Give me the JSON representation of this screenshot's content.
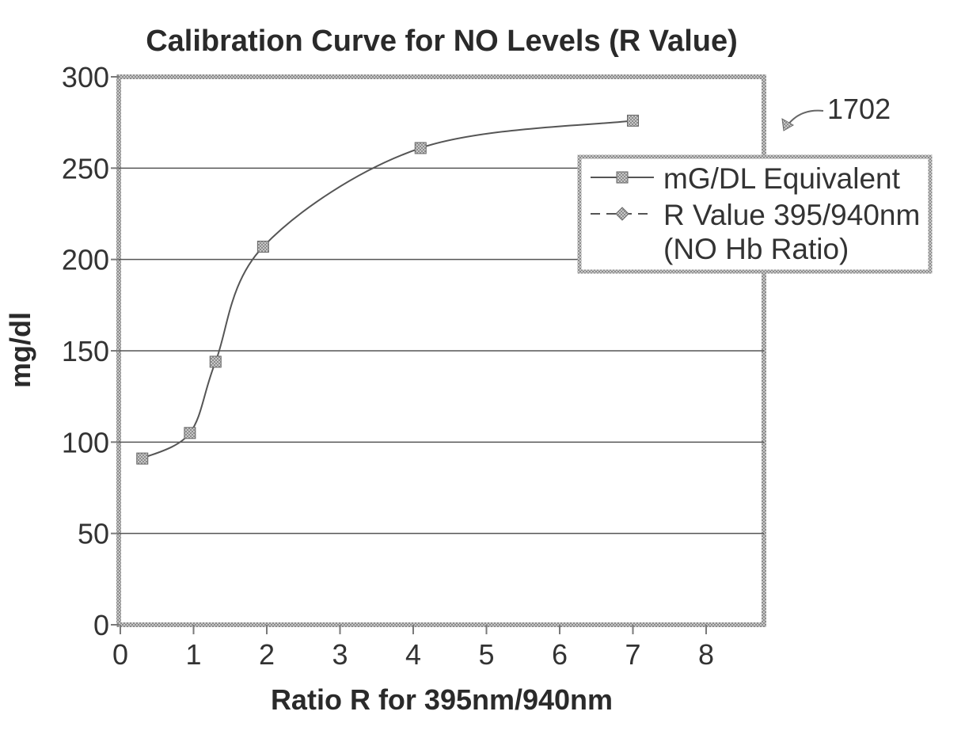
{
  "chart_data": {
    "type": "line",
    "title": "Calibration Curve for NO Levels (R Value)",
    "xlabel": "Ratio R for 395nm/940nm",
    "ylabel": "mg/dl",
    "xlim": [
      0,
      8.8
    ],
    "ylim": [
      0,
      300
    ],
    "x_ticks": [
      0,
      1,
      2,
      3,
      4,
      5,
      6,
      7,
      8
    ],
    "y_ticks": [
      0,
      50,
      100,
      150,
      200,
      250,
      300
    ],
    "grid": "horizontal",
    "legend_position": "right",
    "series": [
      {
        "name": "mG/DL Equivalent",
        "marker": "square",
        "line": "solid",
        "x": [
          0.3,
          0.95,
          1.3,
          1.95,
          4.1,
          7.0
        ],
        "y": [
          91,
          105,
          144,
          207,
          261,
          276
        ]
      },
      {
        "name": "R Value 395/940nm (NO Hb Ratio)",
        "name_lines": [
          "R Value 395/940nm",
          "(NO Hb Ratio)"
        ],
        "marker": "diamond",
        "line": "dashed",
        "x": [],
        "y": []
      }
    ],
    "annotation": "1702"
  },
  "colors": {
    "line": "#555555",
    "marker": "#8a8a8a",
    "frame": "#7a7a7a",
    "grid": "#555555",
    "text": "#333333"
  }
}
